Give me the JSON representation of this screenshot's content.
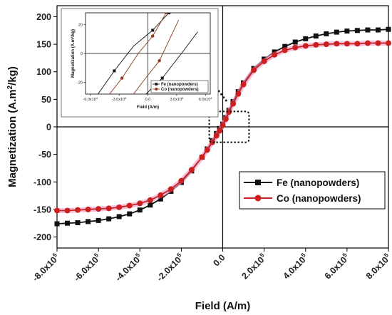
{
  "chart_data": [
    {
      "type": "line",
      "title": "",
      "xlabel": "Field (A/m)",
      "ylabel": "Magnetization (A.m²/kg)",
      "ylabel_main": "Magnetization (A.m",
      "ylabel_sup": "2",
      "ylabel_tail": "/kg)",
      "xlim": [
        -800000,
        800000
      ],
      "ylim": [
        -220,
        220
      ],
      "x_ticks": [
        -800000,
        -600000,
        -400000,
        -200000,
        0,
        200000,
        400000,
        600000,
        800000
      ],
      "x_tick_labels": [
        {
          "mant": "-8.0x10",
          "exp": "5"
        },
        {
          "mant": "-6.0x10",
          "exp": "5"
        },
        {
          "mant": "-4.0x10",
          "exp": "5"
        },
        {
          "mant": "-2.0x10",
          "exp": "5"
        },
        {
          "mant": "0.0",
          "exp": ""
        },
        {
          "mant": "2.0x10",
          "exp": "5"
        },
        {
          "mant": "4.0x10",
          "exp": "5"
        },
        {
          "mant": "6.0x10",
          "exp": "5"
        },
        {
          "mant": "8.0x10",
          "exp": "5"
        }
      ],
      "y_ticks": [
        -200,
        -150,
        -100,
        -50,
        0,
        50,
        100,
        150,
        200
      ],
      "y_tick_labels": [
        "-200",
        "-150",
        "-100",
        "-50",
        "0",
        "50",
        "100",
        "150",
        "200"
      ],
      "grid": false,
      "legend_position": "lower-right",
      "series": [
        {
          "name": "Fe (nanopowders)",
          "color": "#111111",
          "marker": "square",
          "x": [
            -800000,
            -750000,
            -700000,
            -650000,
            -600000,
            -550000,
            -500000,
            -450000,
            -400000,
            -350000,
            -300000,
            -250000,
            -200000,
            -150000,
            -100000,
            -75000,
            -50000,
            -30000,
            -15000,
            0,
            15000,
            30000,
            50000,
            75000,
            100000,
            150000,
            200000,
            250000,
            300000,
            350000,
            400000,
            450000,
            500000,
            550000,
            600000,
            650000,
            700000,
            750000,
            800000
          ],
          "y": [
            -176,
            -175,
            -174,
            -172,
            -170,
            -167,
            -163,
            -158,
            -151,
            -142,
            -131,
            -117,
            -101,
            -80,
            -55,
            -40,
            -25,
            -12,
            -3,
            5,
            17,
            30,
            46,
            64,
            80,
            106,
            123,
            136,
            146,
            154,
            160,
            165,
            169,
            172,
            174,
            175,
            176,
            176,
            177
          ]
        },
        {
          "name": "Co (nanopowders)",
          "color": "#cc1f1f",
          "marker": "circle",
          "x": [
            -800000,
            -750000,
            -700000,
            -650000,
            -600000,
            -550000,
            -500000,
            -450000,
            -400000,
            -350000,
            -300000,
            -250000,
            -200000,
            -150000,
            -100000,
            -75000,
            -50000,
            -30000,
            -15000,
            0,
            15000,
            30000,
            50000,
            75000,
            100000,
            150000,
            200000,
            250000,
            300000,
            350000,
            400000,
            450000,
            500000,
            550000,
            600000,
            650000,
            700000,
            750000,
            800000
          ],
          "y": [
            -152,
            -152,
            -151,
            -150,
            -149,
            -148,
            -146,
            -143,
            -139,
            -133,
            -124,
            -113,
            -98,
            -78,
            -55,
            -42,
            -28,
            -16,
            -7,
            3,
            14,
            27,
            42,
            60,
            77,
            103,
            119,
            131,
            139,
            144,
            147,
            149,
            150,
            151,
            151,
            151,
            152,
            152,
            152
          ]
        }
      ]
    },
    {
      "type": "line",
      "title": "",
      "xlabel": "Field (A/m)",
      "ylabel": "Magnetization (A.m²/kg)",
      "ylabel_main": "Magnetization (A.m",
      "ylabel_sup": "2",
      "ylabel_tail": "/kg)",
      "xlim": [
        -65000,
        65000
      ],
      "ylim": [
        -28,
        28
      ],
      "x_ticks": [
        -60000,
        -30000,
        0,
        30000,
        60000
      ],
      "x_tick_labels": [
        {
          "mant": "-6.0x10",
          "exp": "4"
        },
        {
          "mant": "-3.0x10",
          "exp": "4"
        },
        {
          "mant": "0.0",
          "exp": ""
        },
        {
          "mant": "3.0x10",
          "exp": "4"
        },
        {
          "mant": "6.0x10",
          "exp": "4"
        }
      ],
      "y_ticks": [
        -20,
        0,
        20
      ],
      "y_tick_labels": [
        "-20",
        "0",
        "20"
      ],
      "grid": false,
      "legend_position": "lower-right",
      "series": [
        {
          "name": "Fe (nanopowders)",
          "color": "#111111",
          "marker": "square",
          "segments": [
            {
              "x": [
                -52000,
                -35000,
                -15000,
                5000,
                22000
              ],
              "y": [
                -28,
                -12,
                5,
                16,
                28
              ]
            },
            {
              "x": [
                -2000,
                15000,
                35000,
                52000
              ],
              "y": [
                -28,
                -17,
                0,
                15
              ]
            }
          ],
          "markers": [
            [
              -35000,
              -12
            ],
            [
              5000,
              16
            ],
            [
              22000,
              28
            ],
            [
              15000,
              -17
            ]
          ]
        },
        {
          "name": "Co (nanopowders)",
          "color": "#8b3a1a",
          "marker": "circle",
          "segments": [
            {
              "x": [
                -40000,
                -27000,
                -10000,
                5000,
                19000
              ],
              "y": [
                -28,
                -17,
                0,
                12,
                28
              ]
            },
            {
              "x": [
                -15000,
                0,
                12000,
                32000
              ],
              "y": [
                -28,
                -15,
                -5,
                23
              ]
            }
          ],
          "markers": [
            [
              -27000,
              -17
            ],
            [
              5000,
              12
            ],
            [
              19000,
              28
            ],
            [
              12000,
              -5
            ]
          ]
        }
      ]
    }
  ]
}
